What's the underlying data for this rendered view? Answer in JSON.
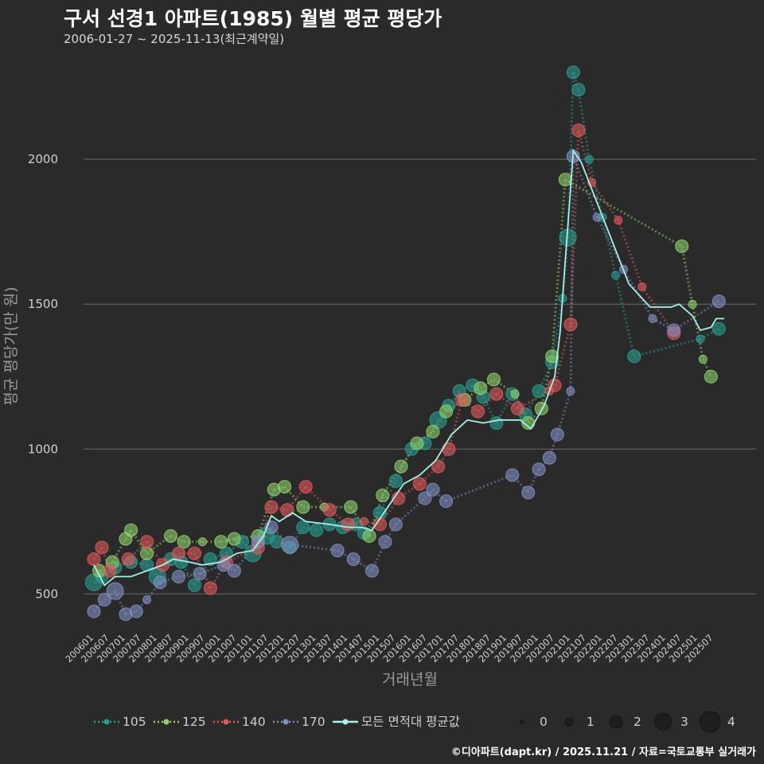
{
  "header": {
    "title": "구서 선경1 아파트(1985) 월별 평균 평당가",
    "subtitle": "2006-01-27 ~ 2025-11-13(최근계약일)"
  },
  "credit": "©디아파트(dapt.kr) / 2025.11.21 / 자료=국토교통부 실거래가",
  "colors": {
    "background": "#2a2a2b",
    "grid": "#6b6b6b",
    "s105": "#2a9d8f",
    "s125": "#8fd16b",
    "s140": "#e05a5a",
    "s170": "#8090c0",
    "avg": "#a8f0e8"
  },
  "chart_data": {
    "type": "scatter",
    "title": "구서 선경1 아파트(1985) 월별 평균 평당가",
    "xlabel": "거래년월",
    "ylabel": "평균 평당가(만 원)",
    "xlim": [
      "2006-01",
      "2025-11"
    ],
    "ylim": [
      380,
      2330
    ],
    "yticks": [
      500,
      1000,
      1500,
      2000
    ],
    "xticks": [
      "200601",
      "200607",
      "200701",
      "200707",
      "200801",
      "200807",
      "200901",
      "200907",
      "201001",
      "201007",
      "201101",
      "201107",
      "201201",
      "201207",
      "201301",
      "201307",
      "201401",
      "201407",
      "201501",
      "201507",
      "201601",
      "201607",
      "201701",
      "201707",
      "201801",
      "201807",
      "201901",
      "201907",
      "202001",
      "202007",
      "202101",
      "202107",
      "202201",
      "202207",
      "202301",
      "202307",
      "202401",
      "202407",
      "202501",
      "202507"
    ],
    "size_legend": {
      "label_values": [
        "0",
        "1",
        "2",
        "3",
        "4"
      ]
    },
    "series": [
      {
        "name": "105",
        "points": [
          [
            "2006-01",
            540,
            3
          ],
          [
            "2006-04",
            560,
            2
          ],
          [
            "2006-09",
            590,
            2
          ],
          [
            "2007-03",
            610,
            2
          ],
          [
            "2007-09",
            600,
            2
          ],
          [
            "2008-01",
            560,
            3
          ],
          [
            "2008-06",
            620,
            2
          ],
          [
            "2008-10",
            610,
            2
          ],
          [
            "2009-03",
            530,
            2
          ],
          [
            "2009-09",
            620,
            2
          ],
          [
            "2010-03",
            640,
            2
          ],
          [
            "2010-09",
            680,
            2
          ],
          [
            "2011-01",
            640,
            3
          ],
          [
            "2011-06",
            700,
            3
          ],
          [
            "2011-10",
            680,
            2
          ],
          [
            "2012-03",
            660,
            2
          ],
          [
            "2012-08",
            730,
            2
          ],
          [
            "2013-01",
            720,
            2
          ],
          [
            "2013-06",
            740,
            2
          ],
          [
            "2013-11",
            730,
            2
          ],
          [
            "2014-04",
            740,
            2
          ],
          [
            "2014-07",
            710,
            2
          ],
          [
            "2015-01",
            780,
            2
          ],
          [
            "2015-07",
            890,
            2
          ],
          [
            "2016-01",
            1000,
            2
          ],
          [
            "2016-06",
            1020,
            2
          ],
          [
            "2016-11",
            1100,
            3
          ],
          [
            "2017-03",
            1150,
            2
          ],
          [
            "2017-07",
            1200,
            2
          ],
          [
            "2017-12",
            1220,
            2
          ],
          [
            "2018-04",
            1180,
            2
          ],
          [
            "2018-09",
            1090,
            2
          ],
          [
            "2019-03",
            1190,
            2
          ],
          [
            "2019-08",
            1120,
            2
          ],
          [
            "2020-01",
            1200,
            2
          ],
          [
            "2020-06",
            1300,
            2
          ],
          [
            "2020-10",
            1520,
            1
          ],
          [
            "2020-12",
            1730,
            3
          ],
          [
            "2021-02",
            2300,
            2
          ],
          [
            "2021-04",
            2240,
            2
          ],
          [
            "2021-08",
            2000,
            1
          ],
          [
            "2022-01",
            1800,
            1
          ],
          [
            "2022-06",
            1600,
            1
          ],
          [
            "2023-01",
            1320,
            2
          ],
          [
            "2025-02",
            1380,
            1
          ],
          [
            "2025-09",
            1415,
            2
          ]
        ]
      },
      {
        "name": "125",
        "points": [
          [
            "2006-03",
            580,
            2
          ],
          [
            "2006-08",
            610,
            2
          ],
          [
            "2007-01",
            690,
            2
          ],
          [
            "2007-03",
            720,
            2
          ],
          [
            "2007-09",
            640,
            2
          ],
          [
            "2008-06",
            700,
            2
          ],
          [
            "2008-11",
            680,
            2
          ],
          [
            "2009-06",
            680,
            1
          ],
          [
            "2010-01",
            680,
            2
          ],
          [
            "2010-06",
            690,
            2
          ],
          [
            "2011-03",
            700,
            2
          ],
          [
            "2011-09",
            860,
            2
          ],
          [
            "2012-01",
            870,
            2
          ],
          [
            "2012-08",
            800,
            2
          ],
          [
            "2013-04",
            800,
            1
          ],
          [
            "2014-02",
            800,
            2
          ],
          [
            "2014-09",
            700,
            2
          ],
          [
            "2015-02",
            840,
            2
          ],
          [
            "2015-09",
            940,
            2
          ],
          [
            "2016-03",
            1020,
            2
          ],
          [
            "2016-09",
            1060,
            2
          ],
          [
            "2017-02",
            1130,
            2
          ],
          [
            "2017-09",
            1170,
            2
          ],
          [
            "2018-03",
            1210,
            2
          ],
          [
            "2018-08",
            1240,
            2
          ],
          [
            "2019-04",
            1190,
            1
          ],
          [
            "2019-09",
            1090,
            2
          ],
          [
            "2020-02",
            1140,
            2
          ],
          [
            "2020-06",
            1320,
            2
          ],
          [
            "2020-11",
            1930,
            2
          ],
          [
            "2024-07",
            1700,
            2
          ],
          [
            "2024-11",
            1500,
            1
          ],
          [
            "2025-03",
            1310,
            1
          ],
          [
            "2025-06",
            1250,
            2
          ]
        ]
      },
      {
        "name": "140",
        "points": [
          [
            "2006-01",
            620,
            2
          ],
          [
            "2006-04",
            660,
            2
          ],
          [
            "2006-07",
            580,
            2
          ],
          [
            "2007-02",
            620,
            2
          ],
          [
            "2007-09",
            680,
            2
          ],
          [
            "2008-03",
            600,
            2
          ],
          [
            "2008-09",
            640,
            2
          ],
          [
            "2009-03",
            640,
            2
          ],
          [
            "2009-09",
            520,
            2
          ],
          [
            "2010-03",
            610,
            2
          ],
          [
            "2011-03",
            660,
            2
          ],
          [
            "2011-08",
            800,
            2
          ],
          [
            "2012-02",
            790,
            2
          ],
          [
            "2012-09",
            870,
            2
          ],
          [
            "2013-06",
            790,
            2
          ],
          [
            "2014-01",
            740,
            2
          ],
          [
            "2014-07",
            750,
            1
          ],
          [
            "2015-01",
            740,
            2
          ],
          [
            "2015-08",
            830,
            2
          ],
          [
            "2016-04",
            880,
            2
          ],
          [
            "2016-11",
            940,
            2
          ],
          [
            "2017-03",
            1000,
            2
          ],
          [
            "2017-08",
            1170,
            2
          ],
          [
            "2018-02",
            1130,
            2
          ],
          [
            "2018-09",
            1190,
            2
          ],
          [
            "2019-05",
            1140,
            2
          ],
          [
            "2020-05",
            1200,
            1
          ],
          [
            "2020-07",
            1220,
            2
          ],
          [
            "2021-01",
            1430,
            2
          ],
          [
            "2021-04",
            2100,
            2
          ],
          [
            "2021-09",
            1920,
            1
          ],
          [
            "2022-07",
            1790,
            1
          ],
          [
            "2023-04",
            1560,
            1
          ],
          [
            "2024-04",
            1400,
            2
          ]
        ]
      },
      {
        "name": "170",
        "points": [
          [
            "2006-01",
            440,
            2
          ],
          [
            "2006-05",
            480,
            2
          ],
          [
            "2006-09",
            510,
            3
          ],
          [
            "2007-01",
            430,
            2
          ],
          [
            "2007-05",
            440,
            2
          ],
          [
            "2007-09",
            480,
            1
          ],
          [
            "2008-02",
            540,
            2
          ],
          [
            "2008-09",
            560,
            2
          ],
          [
            "2009-05",
            570,
            2
          ],
          [
            "2010-02",
            600,
            2
          ],
          [
            "2010-06",
            580,
            2
          ],
          [
            "2011-03",
            680,
            2
          ],
          [
            "2011-08",
            730,
            2
          ],
          [
            "2012-03",
            670,
            3
          ],
          [
            "2013-09",
            650,
            2
          ],
          [
            "2014-03",
            620,
            2
          ],
          [
            "2014-10",
            580,
            2
          ],
          [
            "2015-03",
            680,
            2
          ],
          [
            "2015-07",
            740,
            2
          ],
          [
            "2016-06",
            830,
            2
          ],
          [
            "2016-09",
            860,
            2
          ],
          [
            "2017-02",
            820,
            2
          ],
          [
            "2019-03",
            910,
            2
          ],
          [
            "2019-09",
            850,
            2
          ],
          [
            "2020-01",
            930,
            2
          ],
          [
            "2020-05",
            970,
            2
          ],
          [
            "2020-08",
            1050,
            2
          ],
          [
            "2021-01",
            1200,
            1
          ],
          [
            "2021-02",
            2010,
            2
          ],
          [
            "2021-11",
            1800,
            1
          ],
          [
            "2022-09",
            1620,
            1
          ],
          [
            "2023-08",
            1450,
            1
          ],
          [
            "2024-04",
            1410,
            2
          ],
          [
            "2025-09",
            1510,
            2
          ]
        ]
      }
    ],
    "average": {
      "name": "모든 면적대 평균값",
      "points": [
        [
          "2006-01",
          600
        ],
        [
          "2006-05",
          530
        ],
        [
          "2006-09",
          560
        ],
        [
          "2007-03",
          560
        ],
        [
          "2007-09",
          580
        ],
        [
          "2008-03",
          600
        ],
        [
          "2008-07",
          620
        ],
        [
          "2009-01",
          610
        ],
        [
          "2009-06",
          600
        ],
        [
          "2010-01",
          610
        ],
        [
          "2010-07",
          640
        ],
        [
          "2011-01",
          650
        ],
        [
          "2011-05",
          700
        ],
        [
          "2011-08",
          770
        ],
        [
          "2011-11",
          750
        ],
        [
          "2012-04",
          780
        ],
        [
          "2012-09",
          750
        ],
        [
          "2013-06",
          740
        ],
        [
          "2014-01",
          730
        ],
        [
          "2014-06",
          730
        ],
        [
          "2014-10",
          720
        ],
        [
          "2015-04",
          800
        ],
        [
          "2015-10",
          880
        ],
        [
          "2016-04",
          910
        ],
        [
          "2016-10",
          960
        ],
        [
          "2017-04",
          1050
        ],
        [
          "2017-10",
          1100
        ],
        [
          "2018-04",
          1090
        ],
        [
          "2018-10",
          1100
        ],
        [
          "2019-06",
          1100
        ],
        [
          "2019-10",
          1070
        ],
        [
          "2020-03",
          1150
        ],
        [
          "2020-07",
          1250
        ],
        [
          "2020-09",
          1400
        ],
        [
          "2020-11",
          1650
        ],
        [
          "2021-01",
          1900
        ],
        [
          "2021-02",
          2030
        ],
        [
          "2021-05",
          1990
        ],
        [
          "2022-02",
          1780
        ],
        [
          "2022-11",
          1570
        ],
        [
          "2023-07",
          1490
        ],
        [
          "2024-03",
          1490
        ],
        [
          "2024-06",
          1500
        ],
        [
          "2024-11",
          1460
        ],
        [
          "2025-02",
          1410
        ],
        [
          "2025-06",
          1420
        ],
        [
          "2025-08",
          1450
        ],
        [
          "2025-11",
          1450
        ]
      ]
    },
    "legend": {
      "entries": [
        "105",
        "125",
        "140",
        "170",
        "모든 면적대 평균값"
      ],
      "position": "bottom"
    }
  }
}
